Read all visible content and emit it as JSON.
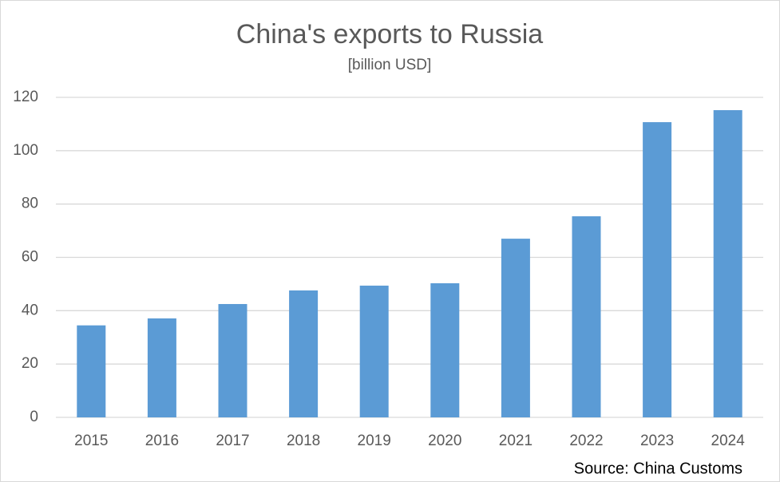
{
  "chart_data": {
    "type": "bar",
    "title": "China's exports to Russia",
    "subtitle": "[billion USD]",
    "categories": [
      "2015",
      "2016",
      "2017",
      "2018",
      "2019",
      "2020",
      "2021",
      "2022",
      "2023",
      "2024"
    ],
    "values": [
      34.5,
      37.1,
      42.5,
      47.6,
      49.4,
      50.3,
      67.0,
      75.4,
      110.7,
      115.2
    ],
    "color": "#5b9bd5",
    "ylim": [
      0,
      120
    ],
    "yticks": [
      0,
      20,
      40,
      60,
      80,
      100,
      120
    ],
    "grid": true,
    "source": "Source: China Customs"
  }
}
